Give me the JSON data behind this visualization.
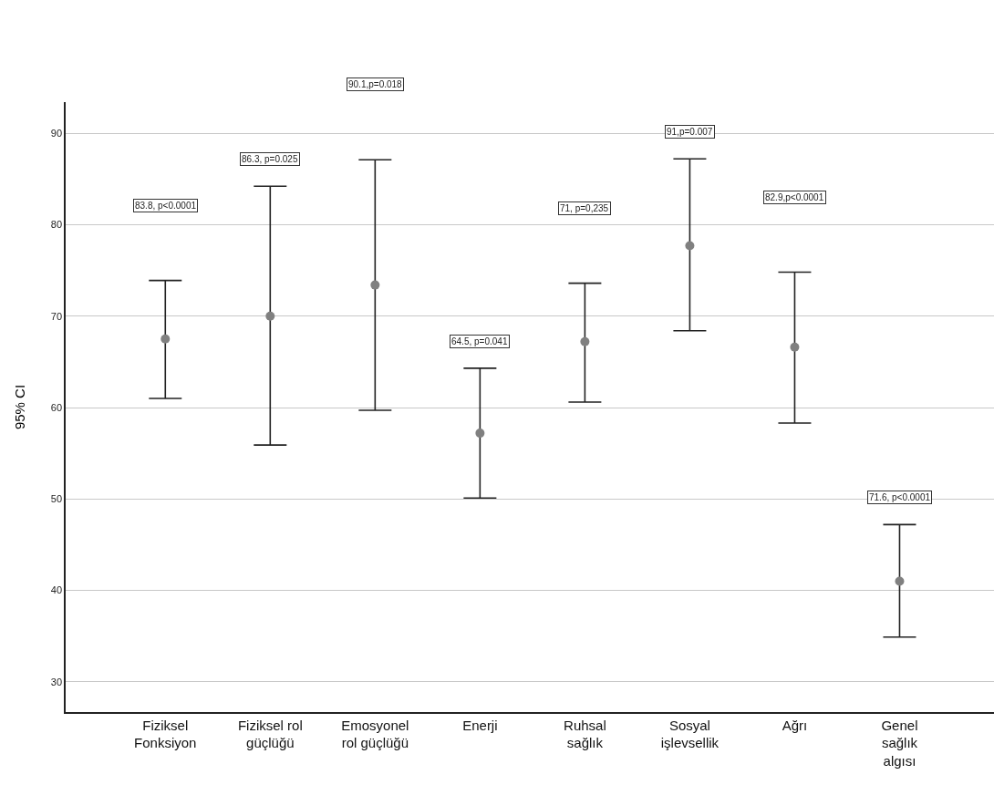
{
  "chart_data": {
    "type": "scatter",
    "ylabel": "95% CI",
    "categories": [
      "Fiziksel\nFonksiyon",
      "Fiziksel rol\ngüçlüğü",
      "Emosyonel\nrol güçlüğü",
      "Enerji",
      "Ruhsal\nsağlık",
      "Sosyal\nişlevsellik",
      "Ağrı",
      "Genel\nsağlık\nalgısı"
    ],
    "series": [
      {
        "color": "#808080",
        "values": [
          67.5,
          70.0,
          73.4,
          57.2,
          67.2,
          77.7,
          66.6,
          41.0
        ],
        "errors": [
          [
            61.0,
            73.9
          ],
          [
            55.9,
            84.2
          ],
          [
            59.7,
            87.1
          ],
          [
            50.1,
            64.3
          ],
          [
            60.6,
            73.6
          ],
          [
            68.4,
            87.2
          ],
          [
            58.3,
            74.8
          ],
          [
            34.9,
            47.2
          ]
        ]
      }
    ],
    "ylim": [
      26.7,
      93.4
    ],
    "yticks": [
      30,
      40,
      50,
      60,
      70,
      80,
      90
    ],
    "grid": "y",
    "marker": "circle",
    "annotations": [
      "83.8, p<0.0001",
      "86.3, p=0.025",
      "90.1,p=0.018",
      "64.5, p=0.041",
      "71, p=0,235",
      "91,p=0.007",
      "82.9,p<0.0001",
      "71.6, p<0.0001"
    ]
  }
}
